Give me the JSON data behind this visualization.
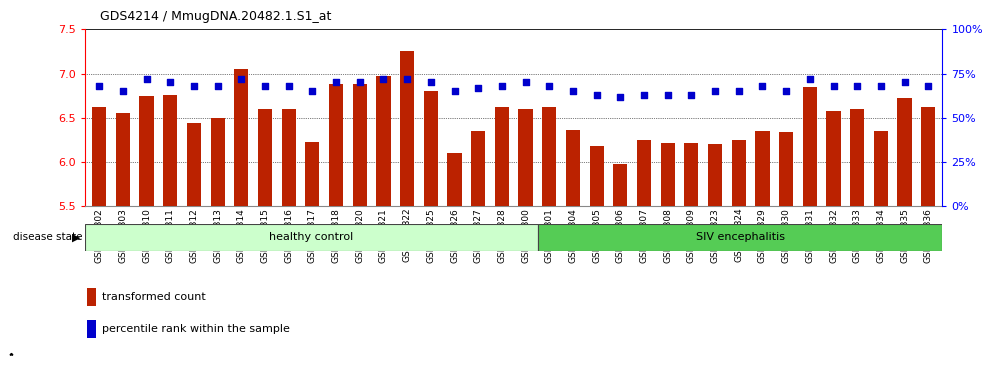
{
  "title": "GDS4214 / MmugDNA.20482.1.S1_at",
  "samples": [
    "GSM347802",
    "GSM347803",
    "GSM347810",
    "GSM347811",
    "GSM347812",
    "GSM347813",
    "GSM347814",
    "GSM347815",
    "GSM347816",
    "GSM347817",
    "GSM347818",
    "GSM347820",
    "GSM347821",
    "GSM347822",
    "GSM347825",
    "GSM347826",
    "GSM347827",
    "GSM347828",
    "GSM347800",
    "GSM347801",
    "GSM347804",
    "GSM347805",
    "GSM347806",
    "GSM347807",
    "GSM347808",
    "GSM347809",
    "GSM347823",
    "GSM347824",
    "GSM347829",
    "GSM347830",
    "GSM347831",
    "GSM347832",
    "GSM347833",
    "GSM347834",
    "GSM347835",
    "GSM347836"
  ],
  "bar_values": [
    6.62,
    6.55,
    6.75,
    6.76,
    6.44,
    6.5,
    7.05,
    6.6,
    6.6,
    6.23,
    6.88,
    6.88,
    6.97,
    7.26,
    6.8,
    6.1,
    6.35,
    6.62,
    6.6,
    6.62,
    6.36,
    6.18,
    5.98,
    6.25,
    6.22,
    6.21,
    6.2,
    6.25,
    6.35,
    6.34,
    6.85,
    6.58,
    6.6,
    6.35,
    6.72,
    6.62
  ],
  "dot_values": [
    68,
    65,
    72,
    70,
    68,
    68,
    72,
    68,
    68,
    65,
    70,
    70,
    72,
    72,
    70,
    65,
    67,
    68,
    70,
    68,
    65,
    63,
    62,
    63,
    63,
    63,
    65,
    65,
    68,
    65,
    72,
    68,
    68,
    68,
    70,
    68
  ],
  "healthy_count": 19,
  "ylim_left": [
    5.5,
    7.5
  ],
  "ylim_right": [
    0,
    100
  ],
  "yticks_left": [
    5.5,
    6.0,
    6.5,
    7.0,
    7.5
  ],
  "yticks_right": [
    0,
    25,
    50,
    75,
    100
  ],
  "ytick_labels_right": [
    "0%",
    "25%",
    "50%",
    "75%",
    "100%"
  ],
  "bar_color": "#bb2200",
  "dot_color": "#0000cc",
  "healthy_color": "#ccffcc",
  "siv_color": "#55cc55",
  "healthy_label": "healthy control",
  "siv_label": "SIV encephalitis",
  "disease_state_label": "disease state",
  "legend_bar_label": "transformed count",
  "legend_dot_label": "percentile rank within the sample"
}
